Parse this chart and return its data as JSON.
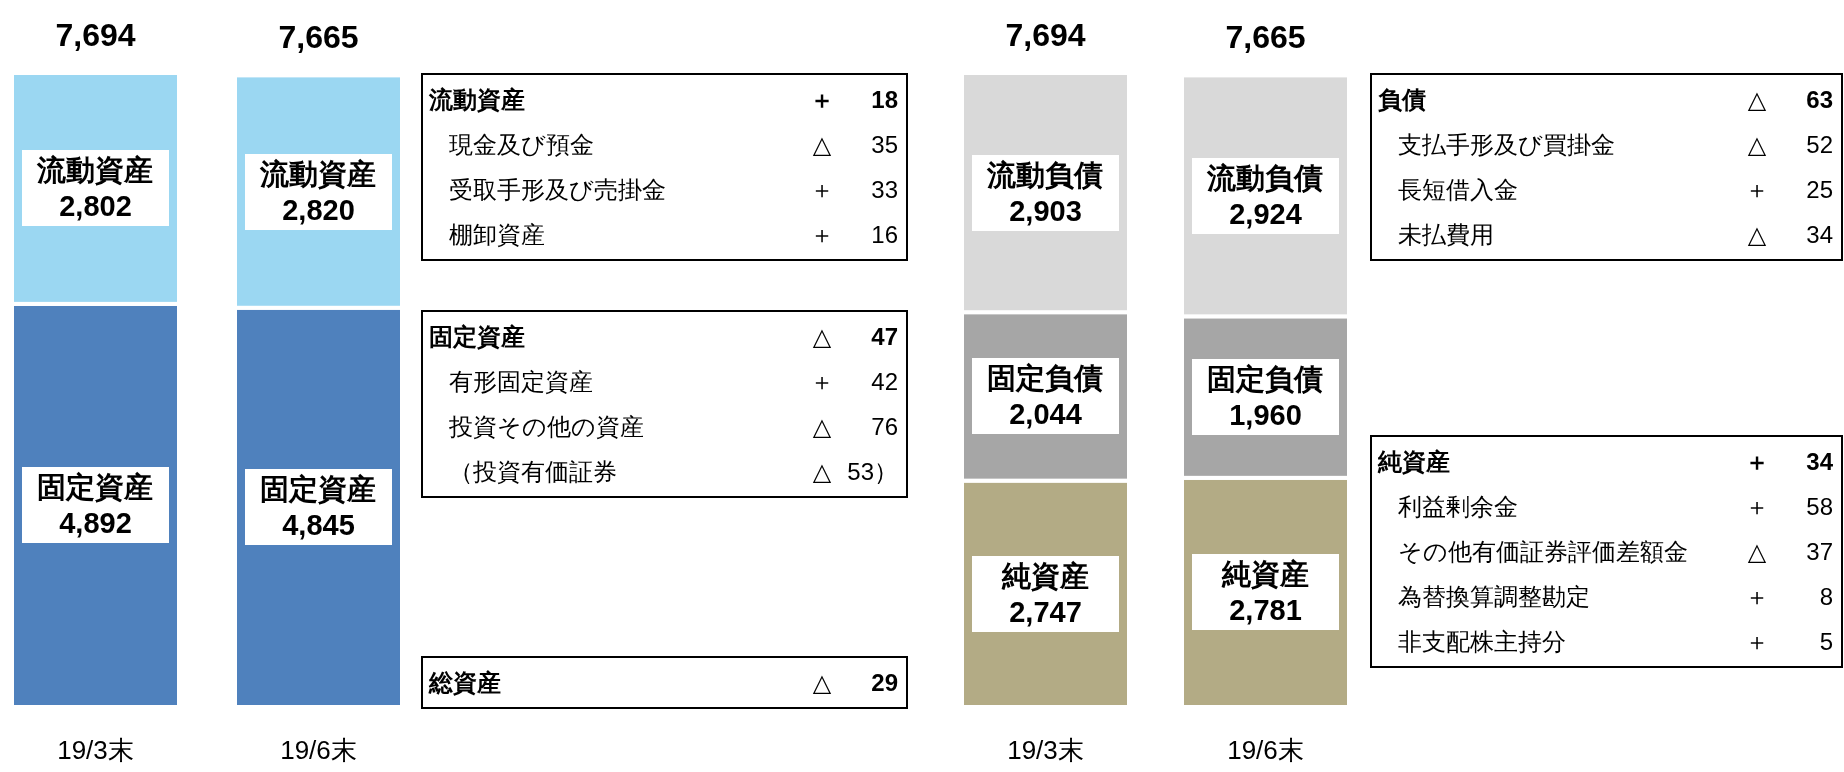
{
  "chart_data": [
    {
      "type": "bar",
      "stacked": true,
      "categories": [
        "19/3末",
        "19/6末"
      ],
      "totals": [
        "7,694",
        "7,665"
      ],
      "series": [
        {
          "name": "固定資産",
          "color": "#4f81bd",
          "values": [
            4892,
            4845
          ],
          "value_labels": [
            "4,892",
            "4,845"
          ]
        },
        {
          "name": "流動資産",
          "color": "#9bd7f2",
          "values": [
            2802,
            2820
          ],
          "value_labels": [
            "2,802",
            "2,820"
          ]
        }
      ],
      "annotations": [
        "流動資産\t＋\t18\n現金及び預金\t△\t35\n受取手形及び売掛金\t＋\t33\n棚卸資産\t＋\t16",
        "固定資産\t△\t47\n有形固定資産\t＋\t42\n投資その他の資産\t△\t76\n（投資有価証券\t△\t53）",
        "総資産\t△\t29"
      ]
    },
    {
      "type": "bar",
      "stacked": true,
      "categories": [
        "19/3末",
        "19/6末"
      ],
      "totals": [
        "7,694",
        "7,665"
      ],
      "series": [
        {
          "name": "純資産",
          "color": "#b3ab85",
          "values": [
            2747,
            2781
          ],
          "value_labels": [
            "2,747",
            "2,781"
          ]
        },
        {
          "name": "固定負債",
          "color": "#a6a6a6",
          "values": [
            2044,
            1960
          ],
          "value_labels": [
            "2,044",
            "1,960"
          ]
        },
        {
          "name": "流動負債",
          "color": "#d9d9d9",
          "values": [
            2903,
            2924
          ],
          "value_labels": [
            "2,903",
            "2,924"
          ]
        }
      ],
      "annotations": [
        "負債\t△\t63\n支払手形及び買掛金\t△\t52\n長短借入金\t＋\t25\n未払費用\t△\t34",
        "純資産\t＋\t34\n利益剰余金\t＋\t58\nその他有価証券評価差額金\t△\t37\n為替換算調整勘定\t＋\t8\n非支配株主持分\t＋\t5"
      ]
    }
  ]
}
